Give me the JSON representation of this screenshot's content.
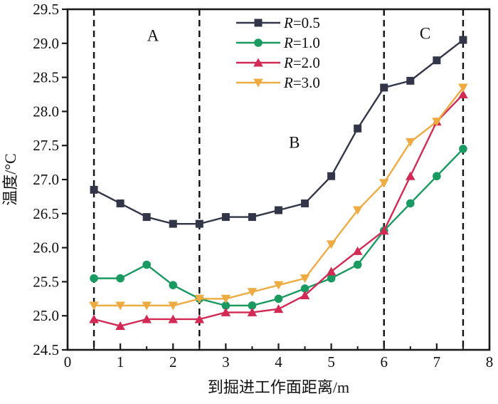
{
  "chart_data": {
    "type": "line",
    "title": "",
    "xlabel": "到掘进工作面距离/m",
    "ylabel": "温度/°C",
    "xlim": [
      0,
      8
    ],
    "ylim": [
      24.5,
      29.5
    ],
    "x_major_ticks": [
      0,
      1,
      2,
      3,
      4,
      5,
      6,
      7,
      8
    ],
    "x_minor_ticks": [
      0.5,
      1.5,
      2.5,
      3.5,
      4.5,
      5.5,
      6.5,
      7.5
    ],
    "y_ticks": [
      24.5,
      25.0,
      25.5,
      26.0,
      26.5,
      27.0,
      27.5,
      28.0,
      28.5,
      29.0,
      29.5
    ],
    "grid": false,
    "legend_position": "top-center-inside",
    "x": [
      0.5,
      1.0,
      1.5,
      2.0,
      2.5,
      3.0,
      3.5,
      4.0,
      4.5,
      5.0,
      5.5,
      6.0,
      6.5,
      7.0,
      7.5
    ],
    "series": [
      {
        "name": "R=0.5",
        "marker": "square",
        "color": "#333649",
        "values": [
          26.85,
          26.65,
          26.45,
          26.35,
          26.35,
          26.45,
          26.45,
          26.55,
          26.65,
          27.05,
          27.75,
          28.35,
          28.45,
          28.75,
          29.05
        ]
      },
      {
        "name": "R=1.0",
        "marker": "circle",
        "color": "#199a60",
        "values": [
          25.55,
          25.55,
          25.75,
          25.45,
          25.25,
          25.15,
          25.15,
          25.25,
          25.4,
          25.55,
          25.75,
          26.25,
          26.65,
          27.05,
          27.45
        ]
      },
      {
        "name": "R=2.0",
        "marker": "triangle-up",
        "color": "#d32a55",
        "values": [
          24.95,
          24.85,
          24.95,
          24.95,
          24.95,
          25.05,
          25.05,
          25.1,
          25.3,
          25.65,
          25.95,
          26.25,
          27.05,
          27.85,
          28.25
        ]
      },
      {
        "name": "R=3.0",
        "marker": "triangle-down",
        "color": "#eeab42",
        "values": [
          25.15,
          25.15,
          25.15,
          25.15,
          25.25,
          25.25,
          25.35,
          25.45,
          25.55,
          26.05,
          26.55,
          26.95,
          27.55,
          27.85,
          28.35
        ]
      }
    ],
    "dashed_lines_x": [
      0.5,
      2.5,
      6.0,
      7.5
    ],
    "region_labels": [
      {
        "text": "A",
        "x": 1.62,
        "y": 29.12
      },
      {
        "text": "B",
        "x": 4.3,
        "y": 27.55
      },
      {
        "text": "C",
        "x": 6.78,
        "y": 29.15
      }
    ]
  },
  "colors": {
    "axis": "#1a1a1a",
    "dashed_line": "#111111",
    "background": "#ffffff"
  }
}
